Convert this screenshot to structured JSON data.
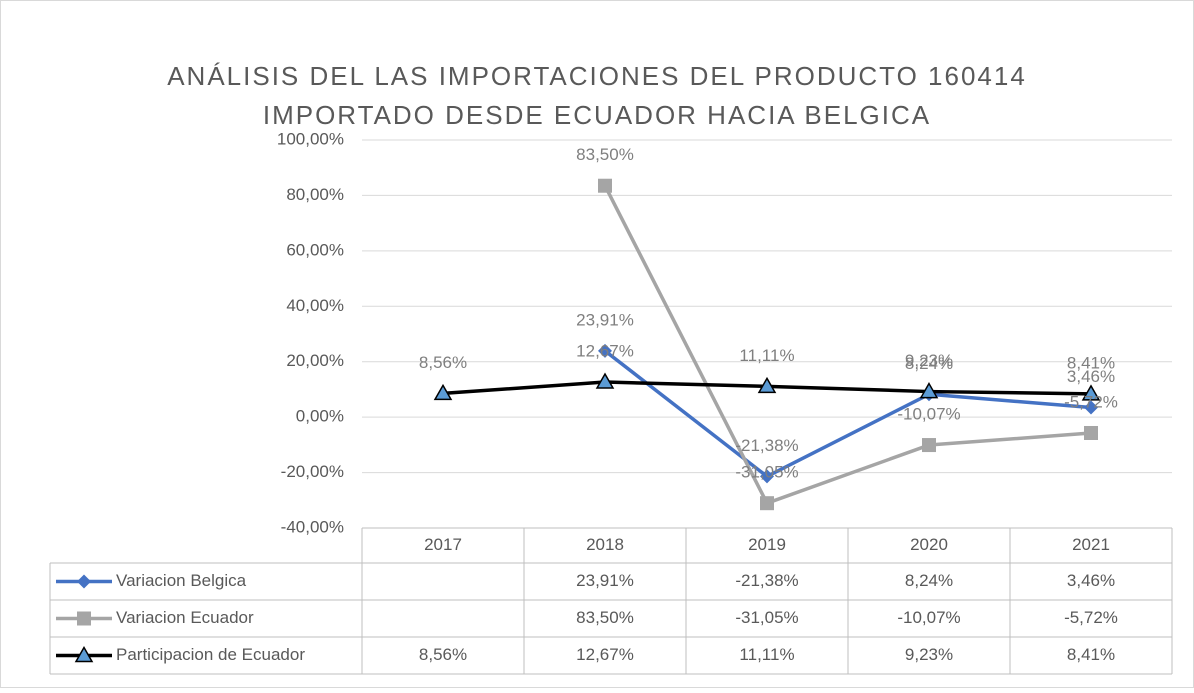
{
  "chart_data": {
    "type": "line",
    "title": [
      "ANÁLISIS DEL LAS IMPORTACIONES DEL PRODUCTO 160414",
      "IMPORTADO DESDE ECUADOR HACIA BELGICA"
    ],
    "categories": [
      "2017",
      "2018",
      "2019",
      "2020",
      "2021"
    ],
    "series": [
      {
        "name": "Variacion Belgica",
        "color": "#4472c4",
        "marker": "diamond",
        "values": [
          null,
          23.91,
          -21.38,
          8.24,
          3.46
        ],
        "value_labels": [
          null,
          "23,91%",
          "-21,38%",
          "8,24%",
          "3,46%"
        ]
      },
      {
        "name": "Variacion Ecuador",
        "color": "#a5a5a5",
        "marker": "square",
        "values": [
          null,
          83.5,
          -31.05,
          -10.07,
          -5.72
        ],
        "value_labels": [
          null,
          "83,50%",
          "-31,05%",
          "-10,07%",
          "-5,72%"
        ]
      },
      {
        "name": "Participacion de Ecuador",
        "color": "#000000",
        "marker": "triangle",
        "values": [
          8.56,
          12.67,
          11.11,
          9.23,
          8.41
        ],
        "value_labels": [
          "8,56%",
          "12,67%",
          "11,11%",
          "9,23%",
          "8,41%"
        ]
      }
    ],
    "ylim": [
      -40,
      100
    ],
    "yticks": [
      {
        "value": -40,
        "label": "-40,00%"
      },
      {
        "value": -20,
        "label": "-20,00%"
      },
      {
        "value": 0,
        "label": "0,00%"
      },
      {
        "value": 20,
        "label": "20,00%"
      },
      {
        "value": 40,
        "label": "40,00%"
      },
      {
        "value": 60,
        "label": "60,00%"
      },
      {
        "value": 80,
        "label": "80,00%"
      },
      {
        "value": 100,
        "label": "100,00%"
      }
    ],
    "grid": true
  }
}
